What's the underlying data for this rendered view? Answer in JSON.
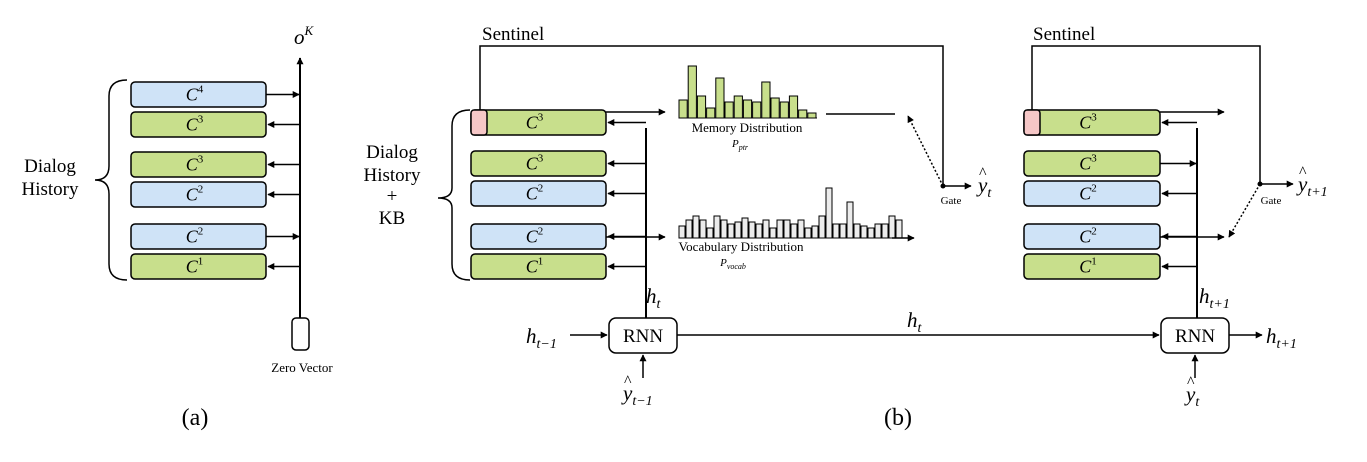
{
  "colors": {
    "green": "#c8df8c",
    "blue": "#cfe3f7",
    "gray": "#ececec",
    "sentinel_pink": "#f6c7c7",
    "stroke": "#000000"
  },
  "panel_a": {
    "caption": "(a)",
    "group_label_line1": "Dialog",
    "group_label_line2": "History",
    "output_label": "o",
    "output_sup": "K",
    "zero_vector_label": "Zero Vector",
    "memory_blocks": [
      {
        "base": "C",
        "sup": "4",
        "color": "blue"
      },
      {
        "base": "C",
        "sup": "3",
        "color": "green"
      },
      {
        "base": "C",
        "sup": "3",
        "color": "green"
      },
      {
        "base": "C",
        "sup": "2",
        "color": "blue"
      },
      {
        "base": "C",
        "sup": "2",
        "color": "blue"
      },
      {
        "base": "C",
        "sup": "1",
        "color": "green"
      }
    ]
  },
  "panel_b": {
    "caption": "(b)",
    "group_label_line1": "Dialog",
    "group_label_line2": "History",
    "group_label_line3": "+",
    "group_label_line4": "KB",
    "sentinel_left": "Sentinel",
    "sentinel_right": "Sentinel",
    "memory_dist_label": "Memory Distribution",
    "p_ptr_base": "P",
    "p_ptr_sub": "ptr",
    "vocab_dist_label": "Vocabulary Distribution",
    "p_vocab_base": "P",
    "p_vocab_sub": "vocab",
    "gate_left": "Gate",
    "gate_right": "Gate",
    "rnn_left": "RNN",
    "rnn_right": "RNN",
    "mem_left": [
      {
        "base": "C",
        "sup": "3",
        "color": "green"
      },
      {
        "base": "C",
        "sup": "3",
        "color": "green"
      },
      {
        "base": "C",
        "sup": "2",
        "color": "blue"
      },
      {
        "base": "C",
        "sup": "2",
        "color": "blue"
      },
      {
        "base": "C",
        "sup": "1",
        "color": "green"
      }
    ],
    "mem_right": [
      {
        "base": "C",
        "sup": "3",
        "color": "green"
      },
      {
        "base": "C",
        "sup": "3",
        "color": "green"
      },
      {
        "base": "C",
        "sup": "2",
        "color": "blue"
      },
      {
        "base": "C",
        "sup": "2",
        "color": "blue"
      },
      {
        "base": "C",
        "sup": "1",
        "color": "green"
      }
    ],
    "math": {
      "h": "h",
      "y": "y",
      "hat": "^",
      "sub_t": "t",
      "sub_t_minus_1": "t−1",
      "sub_t_plus_1": "t+1"
    }
  }
}
